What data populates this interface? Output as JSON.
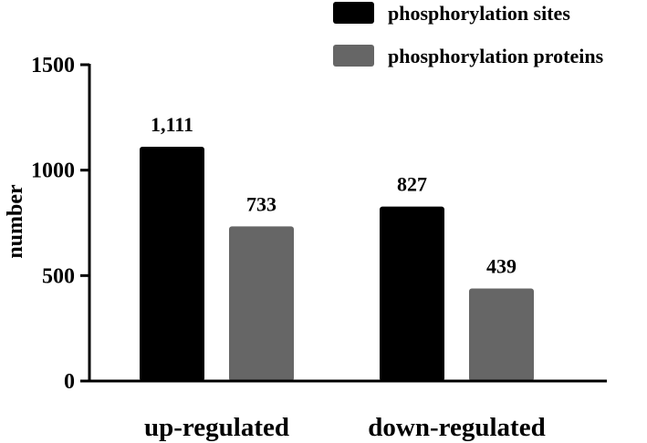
{
  "chart_data": {
    "type": "bar",
    "title": "",
    "xlabel": "",
    "ylabel": "number",
    "ylim": [
      0,
      1500
    ],
    "yticks": [
      0,
      500,
      1000,
      1500
    ],
    "grid": false,
    "legend_position": "top-right",
    "categories": [
      "up-regulated",
      "down-regulated"
    ],
    "series": [
      {
        "name": "phosphorylation sites",
        "color": "#000000",
        "values": [
          1111,
          827
        ],
        "labels": [
          "1,111",
          "827"
        ]
      },
      {
        "name": "phosphorylation proteins",
        "color": "#666666",
        "values": [
          733,
          439
        ],
        "labels": [
          "733",
          "439"
        ]
      }
    ]
  }
}
